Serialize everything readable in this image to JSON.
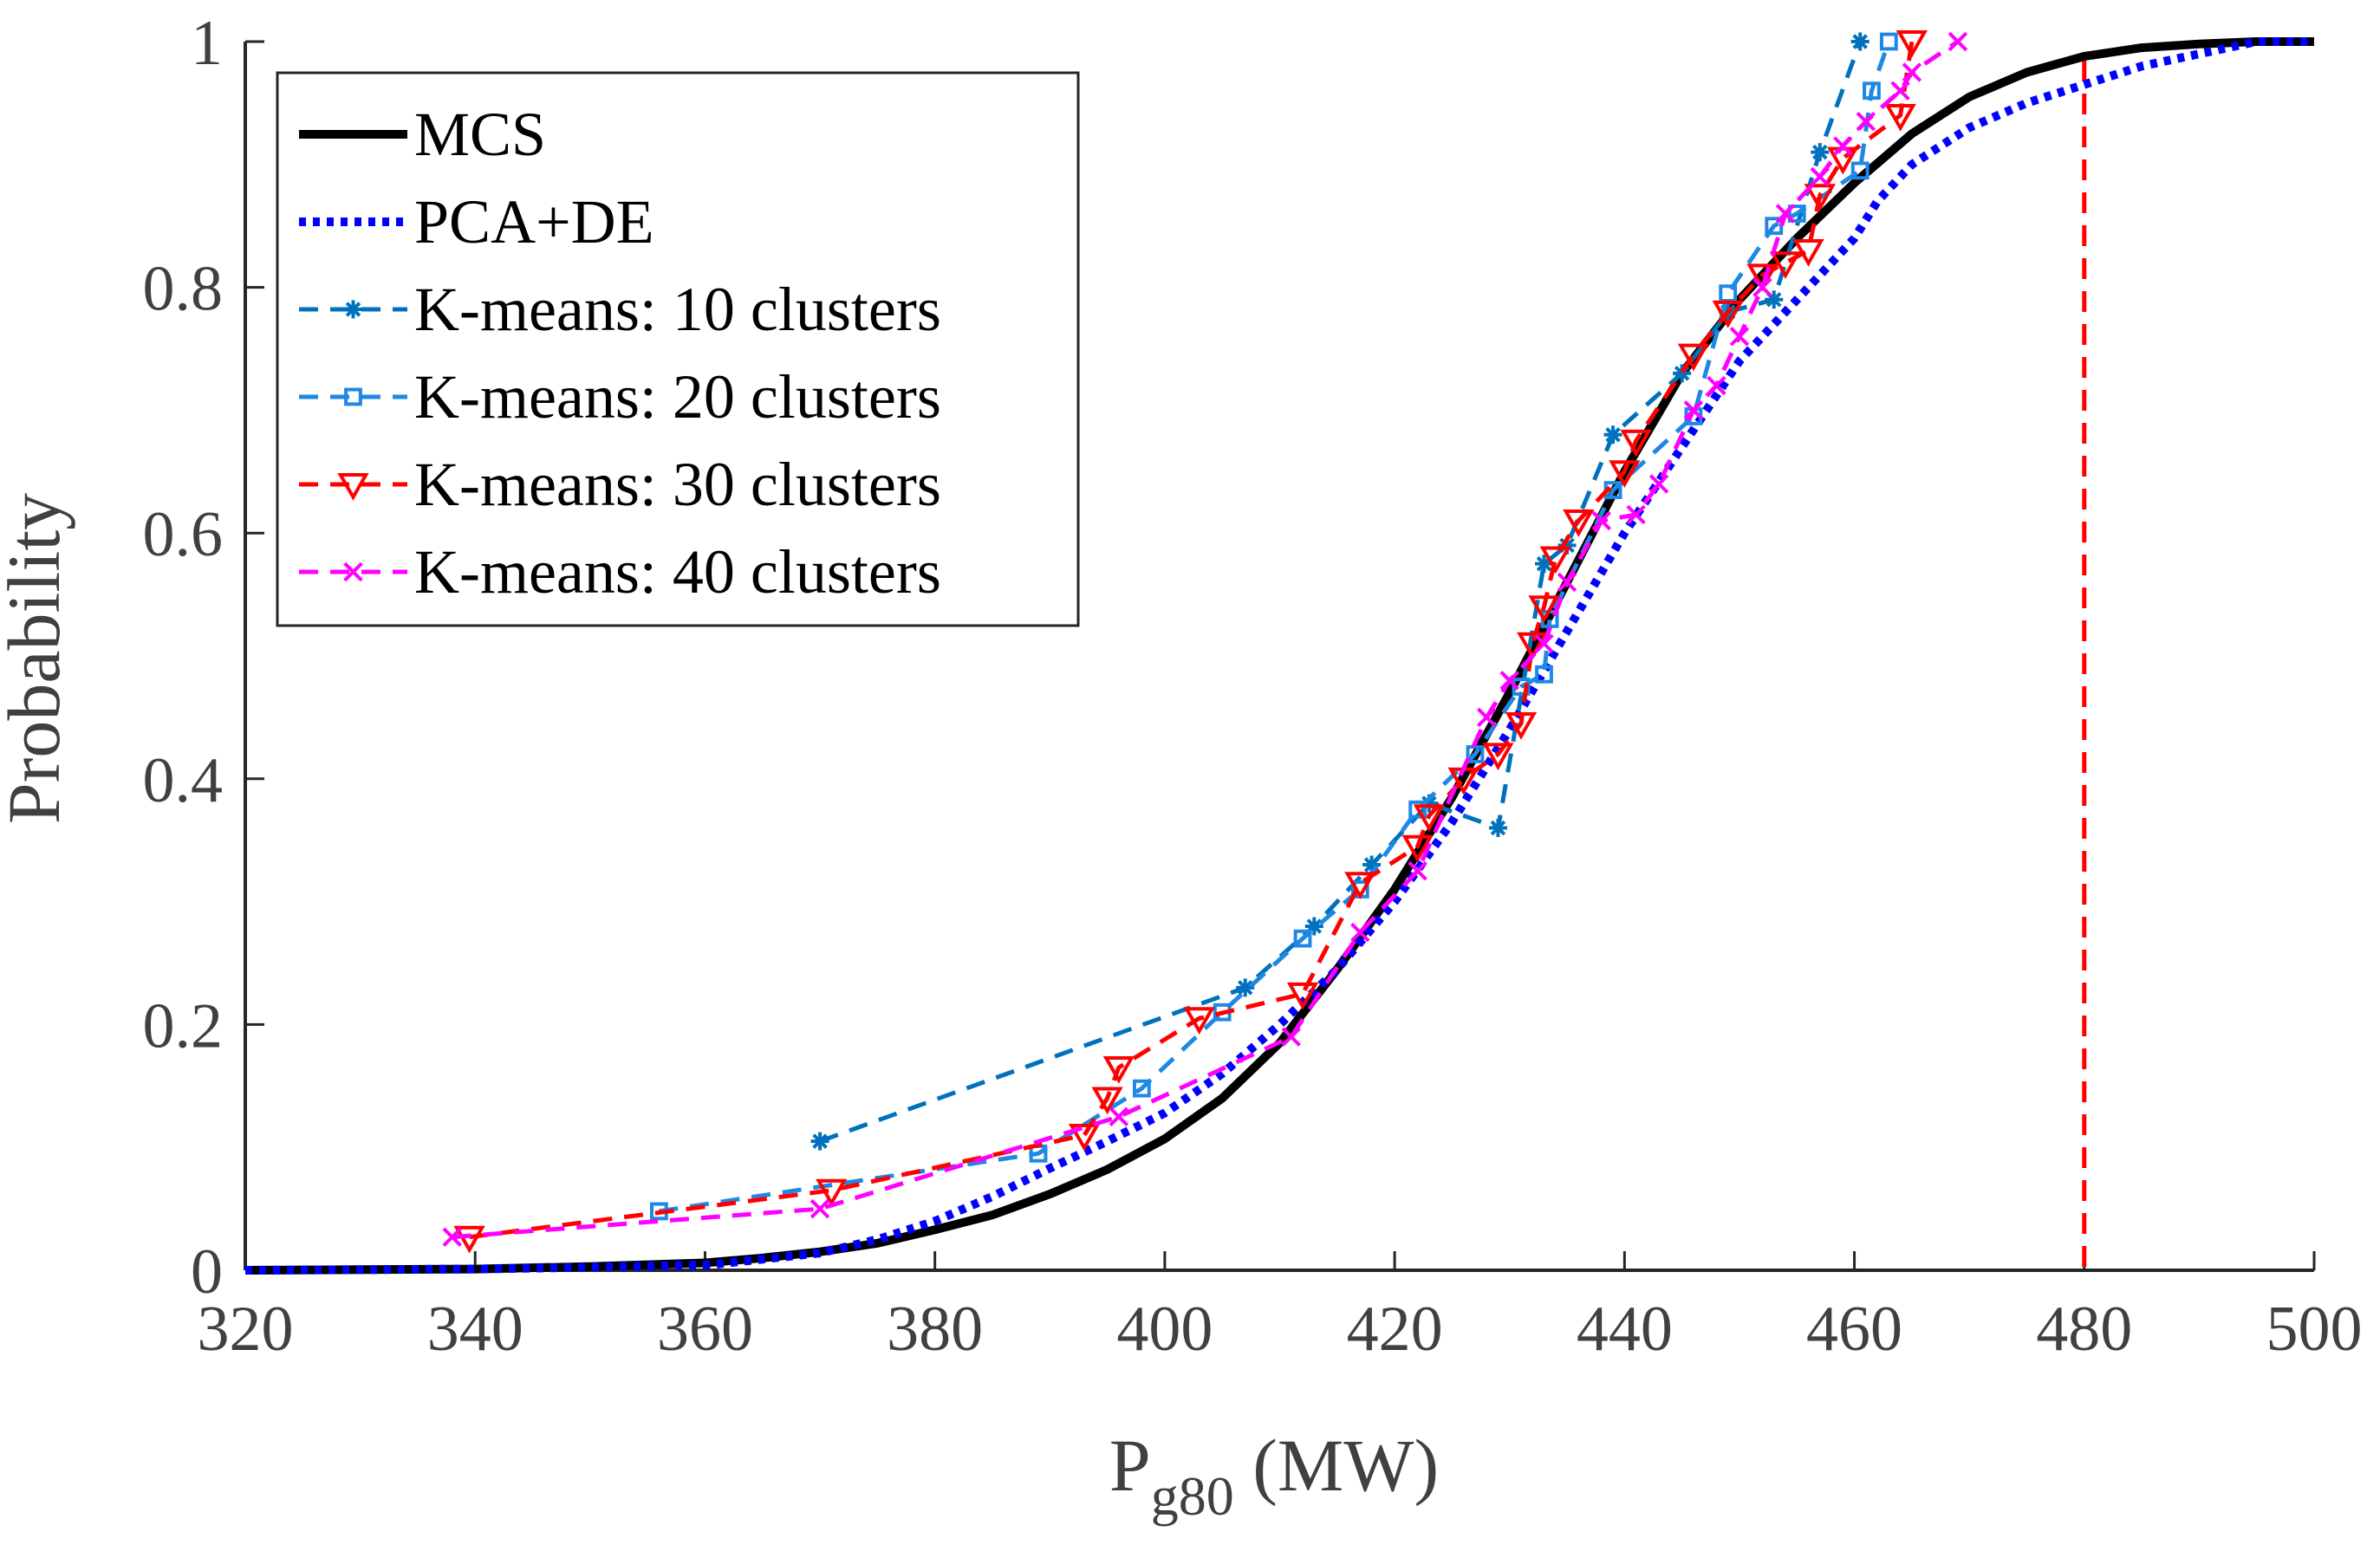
{
  "chart_data": {
    "type": "line",
    "title": "",
    "xlabel_main": "P",
    "xlabel_sub": "g80",
    "xlabel_unit": " (MW)",
    "ylabel": "Probability",
    "xlim": [
      320,
      500
    ],
    "ylim": [
      0,
      1
    ],
    "xticks": [
      320,
      340,
      360,
      380,
      400,
      420,
      440,
      460,
      480,
      500
    ],
    "yticks": [
      0,
      0.2,
      0.4,
      0.6,
      0.8,
      1
    ],
    "ytick_labels": [
      "0",
      "0.2",
      "0.4",
      "0.6",
      "0.8",
      "1"
    ],
    "grid": false,
    "legend_position": "top-left",
    "reference_line": {
      "x": 480,
      "color": "#ff0000",
      "style": "dashed"
    },
    "series": [
      {
        "name": "MCS",
        "color": "#000000",
        "style": "solid",
        "marker": "none",
        "x": [
          320,
          340,
          350,
          360,
          365,
          370,
          375,
          380,
          385,
          390,
          395,
          400,
          405,
          410,
          415,
          420,
          425,
          430,
          435,
          440,
          445,
          450,
          455,
          460,
          465,
          470,
          475,
          480,
          485,
          490,
          495,
          500
        ],
        "y": [
          0,
          0.001,
          0.003,
          0.006,
          0.01,
          0.015,
          0.022,
          0.033,
          0.045,
          0.062,
          0.082,
          0.107,
          0.14,
          0.185,
          0.245,
          0.31,
          0.385,
          0.47,
          0.56,
          0.65,
          0.73,
          0.79,
          0.84,
          0.885,
          0.925,
          0.955,
          0.975,
          0.988,
          0.995,
          0.998,
          1,
          1
        ]
      },
      {
        "name": "PCA+DE",
        "color": "#0000ff",
        "style": "dotted",
        "marker": "none",
        "x": [
          320,
          340,
          360,
          370,
          375,
          380,
          385,
          390,
          395,
          400,
          405,
          410,
          415,
          420,
          425,
          430,
          435,
          440,
          445,
          450,
          455,
          460,
          462,
          465,
          470,
          475,
          480,
          485,
          490,
          495,
          500
        ],
        "y": [
          0,
          0.001,
          0.004,
          0.014,
          0.025,
          0.04,
          0.06,
          0.083,
          0.105,
          0.128,
          0.16,
          0.2,
          0.245,
          0.3,
          0.365,
          0.44,
          0.52,
          0.6,
          0.67,
          0.74,
          0.79,
          0.84,
          0.87,
          0.9,
          0.93,
          0.95,
          0.965,
          0.98,
          0.99,
          1,
          1
        ]
      },
      {
        "name": "K-means: 10 clusters",
        "color": "#0072bd",
        "style": "dashed",
        "marker": "asterisk",
        "x": [
          370,
          407,
          413,
          418,
          423,
          429,
          433,
          435,
          439,
          445,
          449,
          453,
          457,
          460.5
        ],
        "y": [
          0.105,
          0.23,
          0.28,
          0.33,
          0.38,
          0.36,
          0.575,
          0.59,
          0.68,
          0.73,
          0.78,
          0.79,
          0.91,
          1
        ]
      },
      {
        "name": "K-means: 20 clusters",
        "color": "#1e88e5",
        "style": "dashed",
        "marker": "square",
        "x": [
          356,
          389,
          398,
          405,
          412,
          417,
          422,
          427,
          431,
          433,
          433.5,
          439,
          446,
          449,
          453,
          455,
          460.5,
          461.5,
          463
        ],
        "y": [
          0.048,
          0.095,
          0.148,
          0.21,
          0.27,
          0.31,
          0.375,
          0.42,
          0.475,
          0.485,
          0.53,
          0.635,
          0.695,
          0.795,
          0.85,
          0.86,
          0.895,
          0.96,
          1
        ]
      },
      {
        "name": "K-means: 30 clusters",
        "color": "#ff0000",
        "style": "dashed",
        "marker": "triangle-down",
        "x": [
          339.5,
          371,
          393,
          395,
          396,
          403,
          412,
          417,
          422,
          423,
          426,
          429,
          431,
          432,
          433,
          434,
          436,
          440,
          441,
          446,
          449,
          452,
          454,
          456,
          457,
          459,
          464,
          465
        ],
        "y": [
          0.027,
          0.065,
          0.11,
          0.14,
          0.165,
          0.205,
          0.225,
          0.315,
          0.345,
          0.37,
          0.4,
          0.42,
          0.445,
          0.51,
          0.54,
          0.58,
          0.61,
          0.65,
          0.675,
          0.745,
          0.78,
          0.81,
          0.82,
          0.83,
          0.875,
          0.905,
          0.94,
          1
        ]
      },
      {
        "name": "K-means: 40 clusters",
        "color": "#ff00ff",
        "style": "dashed",
        "marker": "x",
        "x": [
          338,
          370,
          396,
          411,
          417,
          422,
          428,
          430,
          433,
          435,
          438,
          441,
          443,
          446,
          448,
          450,
          452,
          454,
          457,
          459,
          461,
          464,
          465,
          469
        ],
        "y": [
          0.027,
          0.05,
          0.125,
          0.19,
          0.275,
          0.325,
          0.45,
          0.48,
          0.51,
          0.56,
          0.61,
          0.615,
          0.64,
          0.7,
          0.72,
          0.76,
          0.8,
          0.86,
          0.89,
          0.915,
          0.935,
          0.96,
          0.975,
          1
        ]
      }
    ]
  }
}
